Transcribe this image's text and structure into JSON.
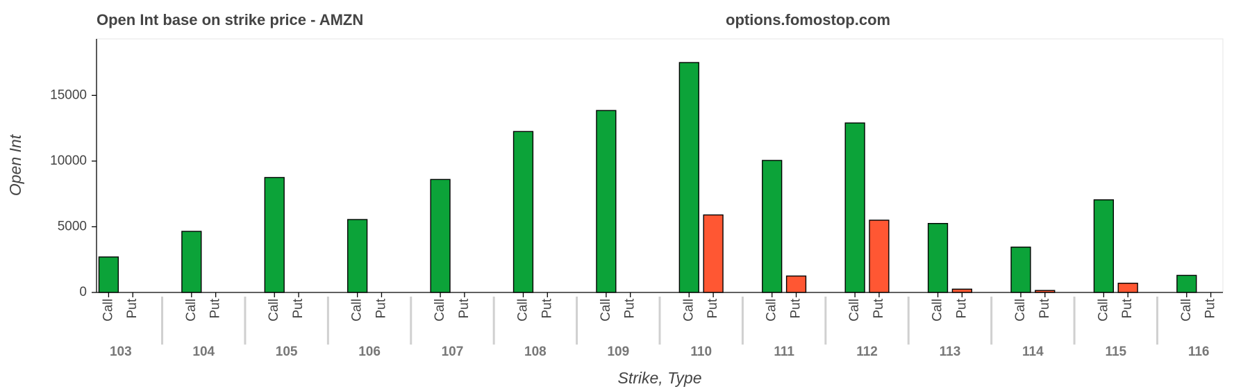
{
  "chart_data": {
    "type": "grouped_bar",
    "title": "Open Int base on strike price - AMZN",
    "subtitle": "options.fomostop.com",
    "x_label": "Strike, Type",
    "y_label": "Open Int",
    "categories": [
      "103",
      "104",
      "105",
      "106",
      "107",
      "108",
      "109",
      "110",
      "111",
      "112",
      "113",
      "114",
      "115",
      "116"
    ],
    "series": [
      {
        "name": "Call",
        "color": "#0ca339",
        "values": [
          2700,
          4650,
          8750,
          5550,
          8600,
          12250,
          13850,
          17500,
          10050,
          12900,
          5250,
          3450,
          7050,
          1300
        ]
      },
      {
        "name": "Put",
        "color": "#ff5733",
        "values": [
          0,
          0,
          0,
          0,
          0,
          0,
          0,
          5900,
          1250,
          5500,
          250,
          150,
          700,
          0
        ]
      }
    ],
    "ylim": [
      0,
      19300
    ],
    "yticks": [
      0,
      5000,
      10000,
      15000
    ],
    "grid": false
  }
}
